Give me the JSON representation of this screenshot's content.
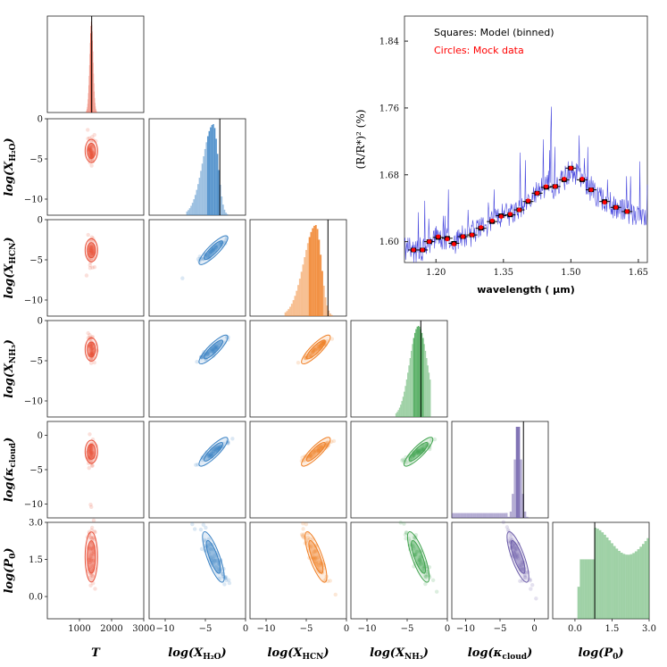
{
  "chart_data": [
    {
      "type": "corner",
      "parameters": [
        "T",
        "log(X_H2O)",
        "log(X_HCN)",
        "log(X_NH3)",
        "log(κ_cloud)",
        "log(P_0)"
      ],
      "x_axis_labels": [
        {
          "main": "T",
          "sub": ""
        },
        {
          "main": "log(X",
          "sub": "H₂O",
          "tail": ")"
        },
        {
          "main": "log(X",
          "sub": "HCN",
          "tail": ")"
        },
        {
          "main": "log(X",
          "sub": "NH₃",
          "tail": ")"
        },
        {
          "main": "log(κ",
          "sub": "cloud",
          "tail": ")"
        },
        {
          "main": "log(P",
          "sub": "0",
          "tail": ")"
        }
      ],
      "y_axis_labels": [
        {
          "main": "log(X",
          "sub": "H₂O",
          "tail": ")"
        },
        {
          "main": "log(X",
          "sub": "HCN",
          "tail": ")"
        },
        {
          "main": "log(X",
          "sub": "NH₃",
          "tail": ")"
        },
        {
          "main": "log(κ",
          "sub": "cloud",
          "tail": ")"
        },
        {
          "main": "log(P",
          "sub": "0",
          "tail": ")"
        }
      ],
      "ranges": [
        [
          0,
          3000
        ],
        [
          -12,
          0
        ],
        [
          -12,
          0
        ],
        [
          -12,
          0
        ],
        [
          -12,
          2
        ],
        [
          -0.9,
          3.0
        ]
      ],
      "x_ticks": [
        {
          "values": [
            1000,
            2000,
            3000
          ],
          "labels": [
            "1000",
            "2000",
            "3000"
          ]
        },
        {
          "values": [
            -10,
            -5,
            0
          ],
          "labels": [
            "−10",
            "−5",
            "0"
          ]
        },
        {
          "values": [
            -10,
            -5,
            0
          ],
          "labels": [
            "−10",
            "−5",
            "0"
          ]
        },
        {
          "values": [
            -10,
            -5,
            0
          ],
          "labels": [
            "−10",
            "−5",
            "0"
          ]
        },
        {
          "values": [
            -10,
            -5,
            0
          ],
          "labels": [
            "−10",
            "−5",
            "0"
          ]
        },
        {
          "values": [
            0,
            1.5,
            3.0
          ],
          "labels": [
            "0.0",
            "1.5",
            "3.0"
          ]
        }
      ],
      "y_ticks": [
        {
          "values": [
            0,
            -5,
            -10
          ],
          "labels": [
            "0",
            "−5",
            "−10"
          ]
        },
        {
          "values": [
            0,
            -5,
            -10
          ],
          "labels": [
            "0",
            "−5",
            "−10"
          ]
        },
        {
          "values": [
            0,
            -5,
            -10
          ],
          "labels": [
            "0",
            "−5",
            "−10"
          ]
        },
        {
          "values": [
            0,
            -5,
            -10
          ],
          "labels": [
            "0",
            "−5",
            "−10"
          ]
        },
        {
          "values": [
            3.0,
            1.5,
            0.0
          ],
          "labels": [
            "3.0",
            "1.5",
            "0.0"
          ]
        }
      ],
      "true_values": [
        1380,
        -3.2,
        -2.3,
        -3.3,
        -1.6,
        0.8
      ],
      "posterior_medians": [
        1370,
        -3.5,
        -3.0,
        -3.3,
        -2.5,
        1.5
      ],
      "colors": {
        "T": "#e8513a",
        "H2O": "#3a82c4",
        "HCN": "#f07f24",
        "NH3": "#3fa34d",
        "cloud": "#6a5aa8",
        "P0": "#3fa34d"
      }
    },
    {
      "type": "line",
      "legend": [
        {
          "label": "Squares: Model (binned)",
          "color": "#000000"
        },
        {
          "label": "Circles: Mock data",
          "color": "#ff0000"
        }
      ],
      "xlabel": "wavelength ( μm)",
      "ylabel": "(R/R*)² (%)",
      "xlim": [
        1.13,
        1.67
      ],
      "ylim": [
        1.575,
        1.87
      ],
      "x_ticks": [
        1.2,
        1.35,
        1.5,
        1.65
      ],
      "x_tick_labels": [
        "1.20",
        "1.35",
        "1.50",
        "1.65"
      ],
      "y_ticks": [
        1.6,
        1.68,
        1.76,
        1.84
      ],
      "y_tick_labels": [
        "1.60",
        "1.68",
        "1.76",
        "1.84"
      ],
      "binned_points": {
        "x": [
          1.15,
          1.17,
          1.185,
          1.205,
          1.225,
          1.24,
          1.26,
          1.28,
          1.3,
          1.325,
          1.345,
          1.365,
          1.385,
          1.405,
          1.425,
          1.445,
          1.465,
          1.485,
          1.5,
          1.525,
          1.545,
          1.575,
          1.6,
          1.625
        ],
        "y": [
          1.59,
          1.59,
          1.6,
          1.605,
          1.604,
          1.598,
          1.606,
          1.608,
          1.616,
          1.624,
          1.631,
          1.632,
          1.638,
          1.648,
          1.658,
          1.665,
          1.666,
          1.674,
          1.688,
          1.674,
          1.662,
          1.648,
          1.641,
          1.636
        ]
      },
      "mock_points": {
        "x": [
          1.15,
          1.17,
          1.185,
          1.205,
          1.225,
          1.24,
          1.26,
          1.28,
          1.3,
          1.325,
          1.345,
          1.365,
          1.385,
          1.405,
          1.425,
          1.445,
          1.465,
          1.485,
          1.5,
          1.525,
          1.545,
          1.575,
          1.6,
          1.625
        ],
        "y": [
          1.59,
          1.59,
          1.6,
          1.606,
          1.603,
          1.597,
          1.606,
          1.608,
          1.617,
          1.625,
          1.63,
          1.633,
          1.638,
          1.649,
          1.658,
          1.666,
          1.666,
          1.675,
          1.688,
          1.675,
          1.662,
          1.647,
          1.641,
          1.636
        ]
      }
    }
  ]
}
